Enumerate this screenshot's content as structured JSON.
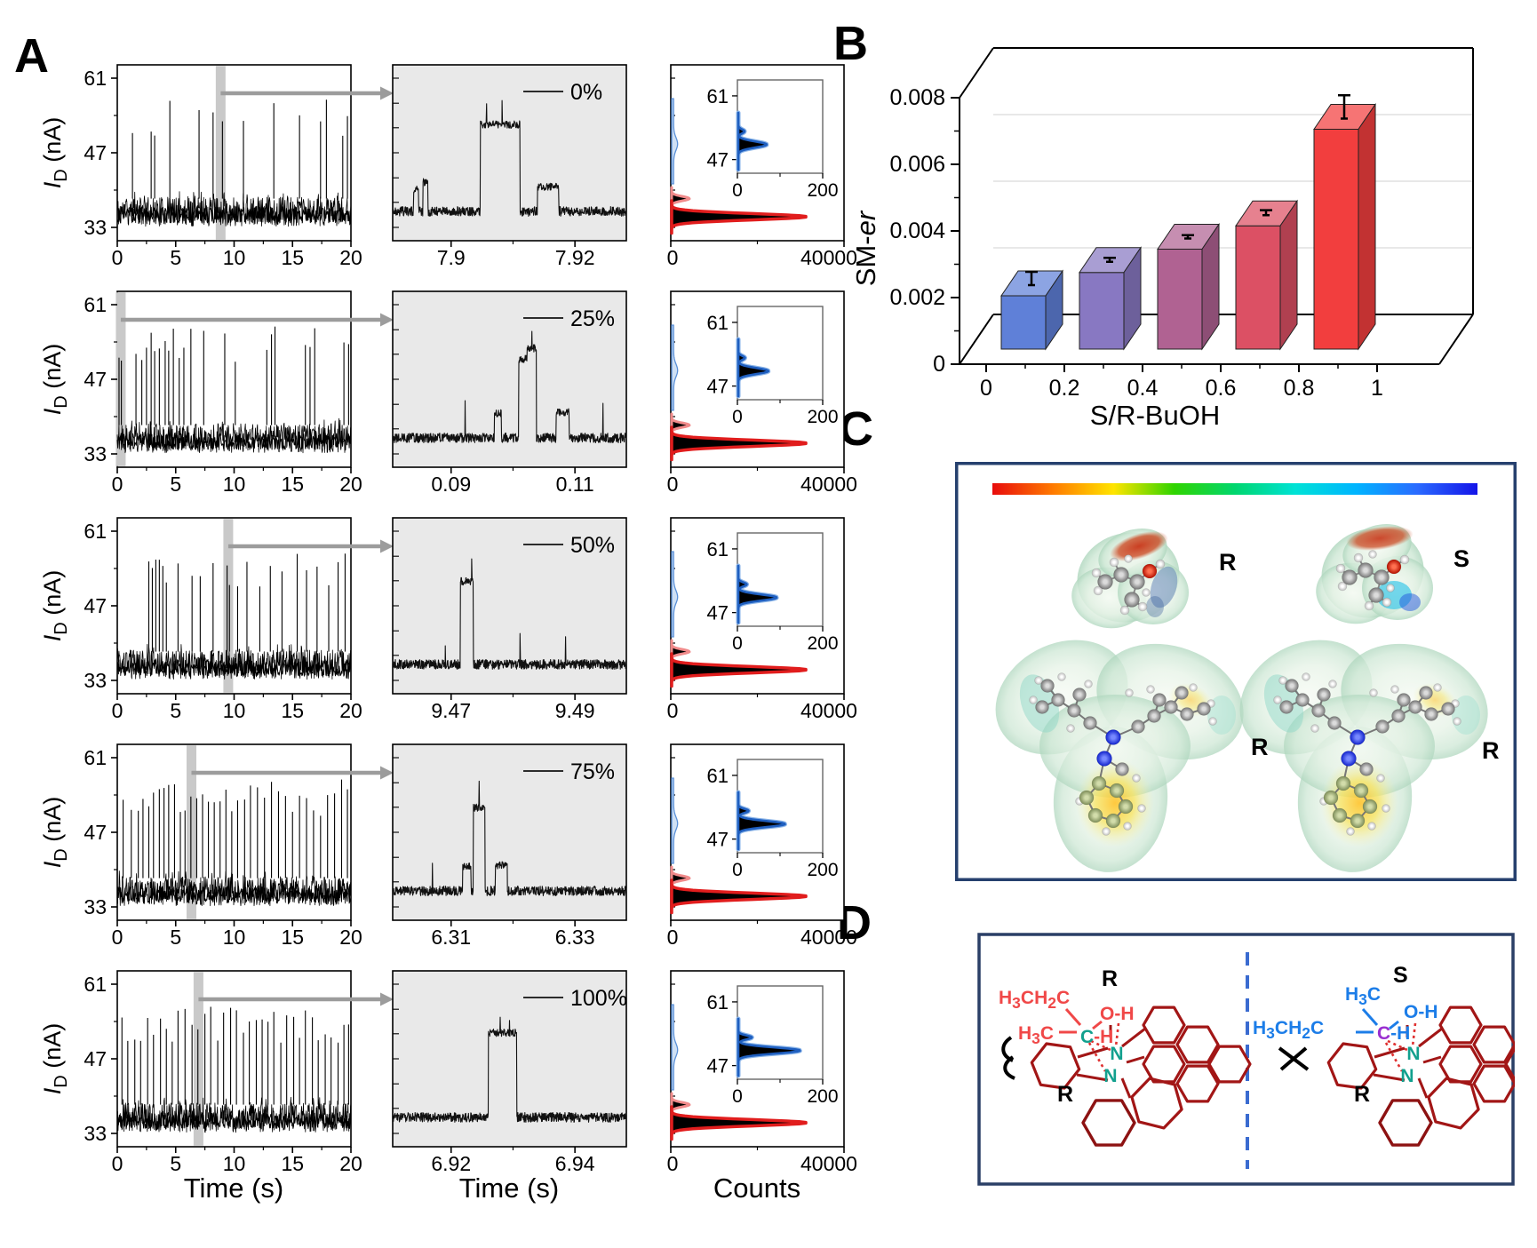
{
  "panel_labels": {
    "a": "A",
    "b": "B",
    "c": "C",
    "d": "D"
  },
  "chart_data": {
    "panel_A": {
      "type": "line",
      "xlabel_left": "Time (s)",
      "xlabel_mid": "Time (s)",
      "xlabel_right": "Counts",
      "ylabel_parts": {
        "pre": "I",
        "sub": "D",
        "post": " (nA)"
      },
      "xlim": [
        0,
        20
      ],
      "ylim": [
        30.5,
        63.5
      ],
      "x_ticks": [
        0,
        5,
        10,
        15,
        20
      ],
      "y_ticks": [
        33,
        47,
        61
      ],
      "hist_x_ticks": [
        0,
        40000
      ],
      "inset_x_ticks": [
        0,
        200
      ],
      "inset_y_ticks": [
        61,
        47
      ],
      "baseline_nA": 36,
      "open_level_nA": 52,
      "rows": [
        {
          "legend": "0%",
          "seed": 11,
          "band_s": 8.85,
          "zoom_ticks": [
            "7.9",
            "7.92"
          ],
          "spike_times": [
            1.3,
            2.9,
            3.2,
            4.5,
            7.0,
            8.2,
            9.0,
            10.8,
            13.4,
            15.6,
            17.4,
            17.9,
            19.3,
            19.7
          ],
          "segments": [
            [
              0.09,
              0.11,
              40.2
            ],
            [
              0.13,
              0.15,
              41.5
            ],
            [
              0.375,
              0.545,
              52.3
            ],
            [
              0.62,
              0.71,
              40.6
            ]
          ],
          "spikes": [
            [
              0.402,
              56.2
            ],
            [
              0.468,
              56.8
            ]
          ],
          "inset_peak_frac": 0.34
        },
        {
          "legend": "25%",
          "seed": 22,
          "band_s": 0.3,
          "zoom_ticks": [
            "0.09",
            "0.11"
          ],
          "spike_times": [
            0.15,
            0.35,
            1.6,
            2.1,
            2.5,
            2.9,
            3.2,
            3.6,
            4.1,
            4.4,
            4.8,
            5.3,
            5.7,
            6.3,
            7.4,
            9.2,
            10.1,
            12.8,
            13.2,
            13.5,
            16.1,
            16.5,
            16.9,
            19.4,
            19.8
          ],
          "segments": [
            [
              0.435,
              0.465,
              40.6
            ],
            [
              0.54,
              0.575,
              50.8
            ],
            [
              0.575,
              0.615,
              52.8
            ],
            [
              0.7,
              0.755,
              40.8
            ]
          ],
          "spikes": [
            [
              0.31,
              43.0
            ],
            [
              0.596,
              56.0
            ],
            [
              0.9,
              42.5
            ]
          ],
          "inset_peak_frac": 0.36
        },
        {
          "legend": "50%",
          "seed": 33,
          "band_s": 9.5,
          "zoom_ticks": [
            "9.47",
            "9.49"
          ],
          "spike_times": [
            2.7,
            3.0,
            3.3,
            3.6,
            3.9,
            4.2,
            5.2,
            6.4,
            7.1,
            8.2,
            9.4,
            9.6,
            10.3,
            11.1,
            12.2,
            13.1,
            14.1,
            15.4,
            16.2,
            17.1,
            18.1,
            18.9,
            19.5
          ],
          "segments": [
            [
              0.29,
              0.345,
              51.6
            ]
          ],
          "spikes": [
            [
              0.225,
              39.5
            ],
            [
              0.338,
              55.8
            ],
            [
              0.545,
              41.8
            ],
            [
              0.74,
              41.2
            ]
          ],
          "inset_peak_frac": 0.46
        },
        {
          "legend": "75%",
          "seed": 44,
          "band_s": 6.35,
          "zoom_ticks": [
            "6.31",
            "6.33"
          ],
          "spike_times": [
            0.5,
            1.2,
            1.8,
            2.2,
            2.7,
            3.1,
            3.6,
            4.0,
            4.4,
            4.9,
            5.4,
            5.8,
            6.3,
            6.8,
            7.3,
            7.8,
            8.3,
            8.8,
            9.3,
            9.8,
            10.3,
            10.9,
            11.4,
            12.0,
            12.6,
            13.2,
            13.8,
            14.4,
            15.0,
            15.6,
            16.2,
            16.8,
            17.4,
            18.0,
            18.6,
            19.2,
            19.7
          ],
          "segments": [
            [
              0.3,
              0.335,
              40.6
            ],
            [
              0.345,
              0.395,
              51.6
            ],
            [
              0.44,
              0.49,
              40.8
            ]
          ],
          "spikes": [
            [
              0.17,
              41.2
            ],
            [
              0.37,
              56.6
            ]
          ],
          "inset_peak_frac": 0.56
        },
        {
          "legend": "100%",
          "seed": 55,
          "band_s": 6.95,
          "zoom_ticks": [
            "6.92",
            "6.94"
          ],
          "spike_times": [
            0.4,
            0.9,
            1.5,
            2.0,
            2.6,
            3.1,
            3.7,
            4.2,
            4.7,
            5.2,
            5.8,
            6.4,
            6.9,
            7.5,
            8.0,
            8.6,
            9.1,
            9.7,
            10.2,
            10.8,
            11.3,
            11.9,
            12.4,
            12.9,
            13.4,
            14.0,
            14.5,
            15.1,
            15.6,
            16.1,
            16.7,
            17.2,
            17.8,
            18.3,
            18.9,
            19.4,
            19.8
          ],
          "segments": [
            [
              0.41,
              0.53,
              51.9
            ]
          ],
          "spikes": [
            [
              0.46,
              54.8
            ],
            [
              0.5,
              54.2
            ]
          ],
          "inset_peak_frac": 0.74
        }
      ],
      "hist_main_peak_nA": 35,
      "hist_secondary_peak_nA": 38.4,
      "inset_peak_nA": 50.3,
      "colors": {
        "main_outline": "#e11d1d",
        "secondary_outline": "#f08a8a",
        "inset_outline": "#1f5fc0",
        "inset_halo": "#8ab4e8",
        "fill": "#000000",
        "zoom_bg": "#e9e9e9",
        "band": "#c9c9c9",
        "arrow": "#9c9c9c"
      }
    },
    "panel_B": {
      "type": "bar",
      "categories": [
        0,
        0.25,
        0.5,
        0.75,
        1
      ],
      "values": [
        0.0016,
        0.0023,
        0.003,
        0.0037,
        0.0066
      ],
      "errors": [
        0.0004,
        0.00012,
        0.0001,
        0.00015,
        0.0007
      ],
      "x_ticks": [
        0,
        0.2,
        0.4,
        0.6,
        0.8,
        1
      ],
      "y_ticks": [
        0,
        0.002,
        0.004,
        0.006,
        0.008
      ],
      "ylim": [
        0,
        0.008
      ],
      "xlabel": "S/R-BuOH",
      "ylabel": "SM-er",
      "bar_colors": [
        "#5f80d8",
        "#8878c2",
        "#b06292",
        "#dc5064",
        "#f23e3e"
      ],
      "grid": true,
      "legend": "none"
    },
    "panel_C": {
      "colorbar_colors": [
        "#e80c0c",
        "#ff7a00",
        "#ffe400",
        "#2fd400",
        "#00d66e",
        "#00e2d6",
        "#00b4ff",
        "#2a6bff",
        "#1414e8"
      ],
      "molecule_labels": [
        "R",
        "S",
        "R",
        "R"
      ]
    },
    "panel_D": {
      "nitrogen_label": "N",
      "left": {
        "stereo_top": "R",
        "stereo_side": "R",
        "ethyl": "H3CH2C",
        "methyl": "H3C",
        "ch_c": "C",
        "ch_h": "-H",
        "oh": "O-H"
      },
      "right": {
        "stereo_top": "S",
        "stereo_side": "R",
        "ethyl": "H3CH2C",
        "methyl": "H3C",
        "ch_c": "C",
        "ch_h": "-H",
        "oh": "O-H"
      }
    }
  }
}
